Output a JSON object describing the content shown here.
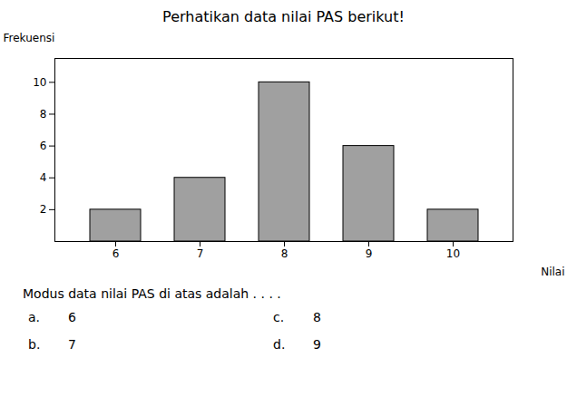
{
  "chart_data": {
    "type": "bar",
    "title": "Perhatikan data nilai PAS berikut!",
    "xlabel": "Nilai",
    "ylabel": "Frekuensi",
    "categories": [
      6,
      7,
      8,
      9,
      10
    ],
    "values": [
      2,
      4,
      10,
      6,
      2
    ],
    "color": "#a0a0a0",
    "ylim": [
      0,
      11.5
    ],
    "yticks": [
      2,
      4,
      6,
      8,
      10
    ],
    "grid": false,
    "annotations": [
      "Modus data nilai PAS di atas adalah . . . .",
      "a.",
      "6",
      "b.",
      "7",
      "c.",
      "8",
      "d.",
      "9"
    ]
  }
}
